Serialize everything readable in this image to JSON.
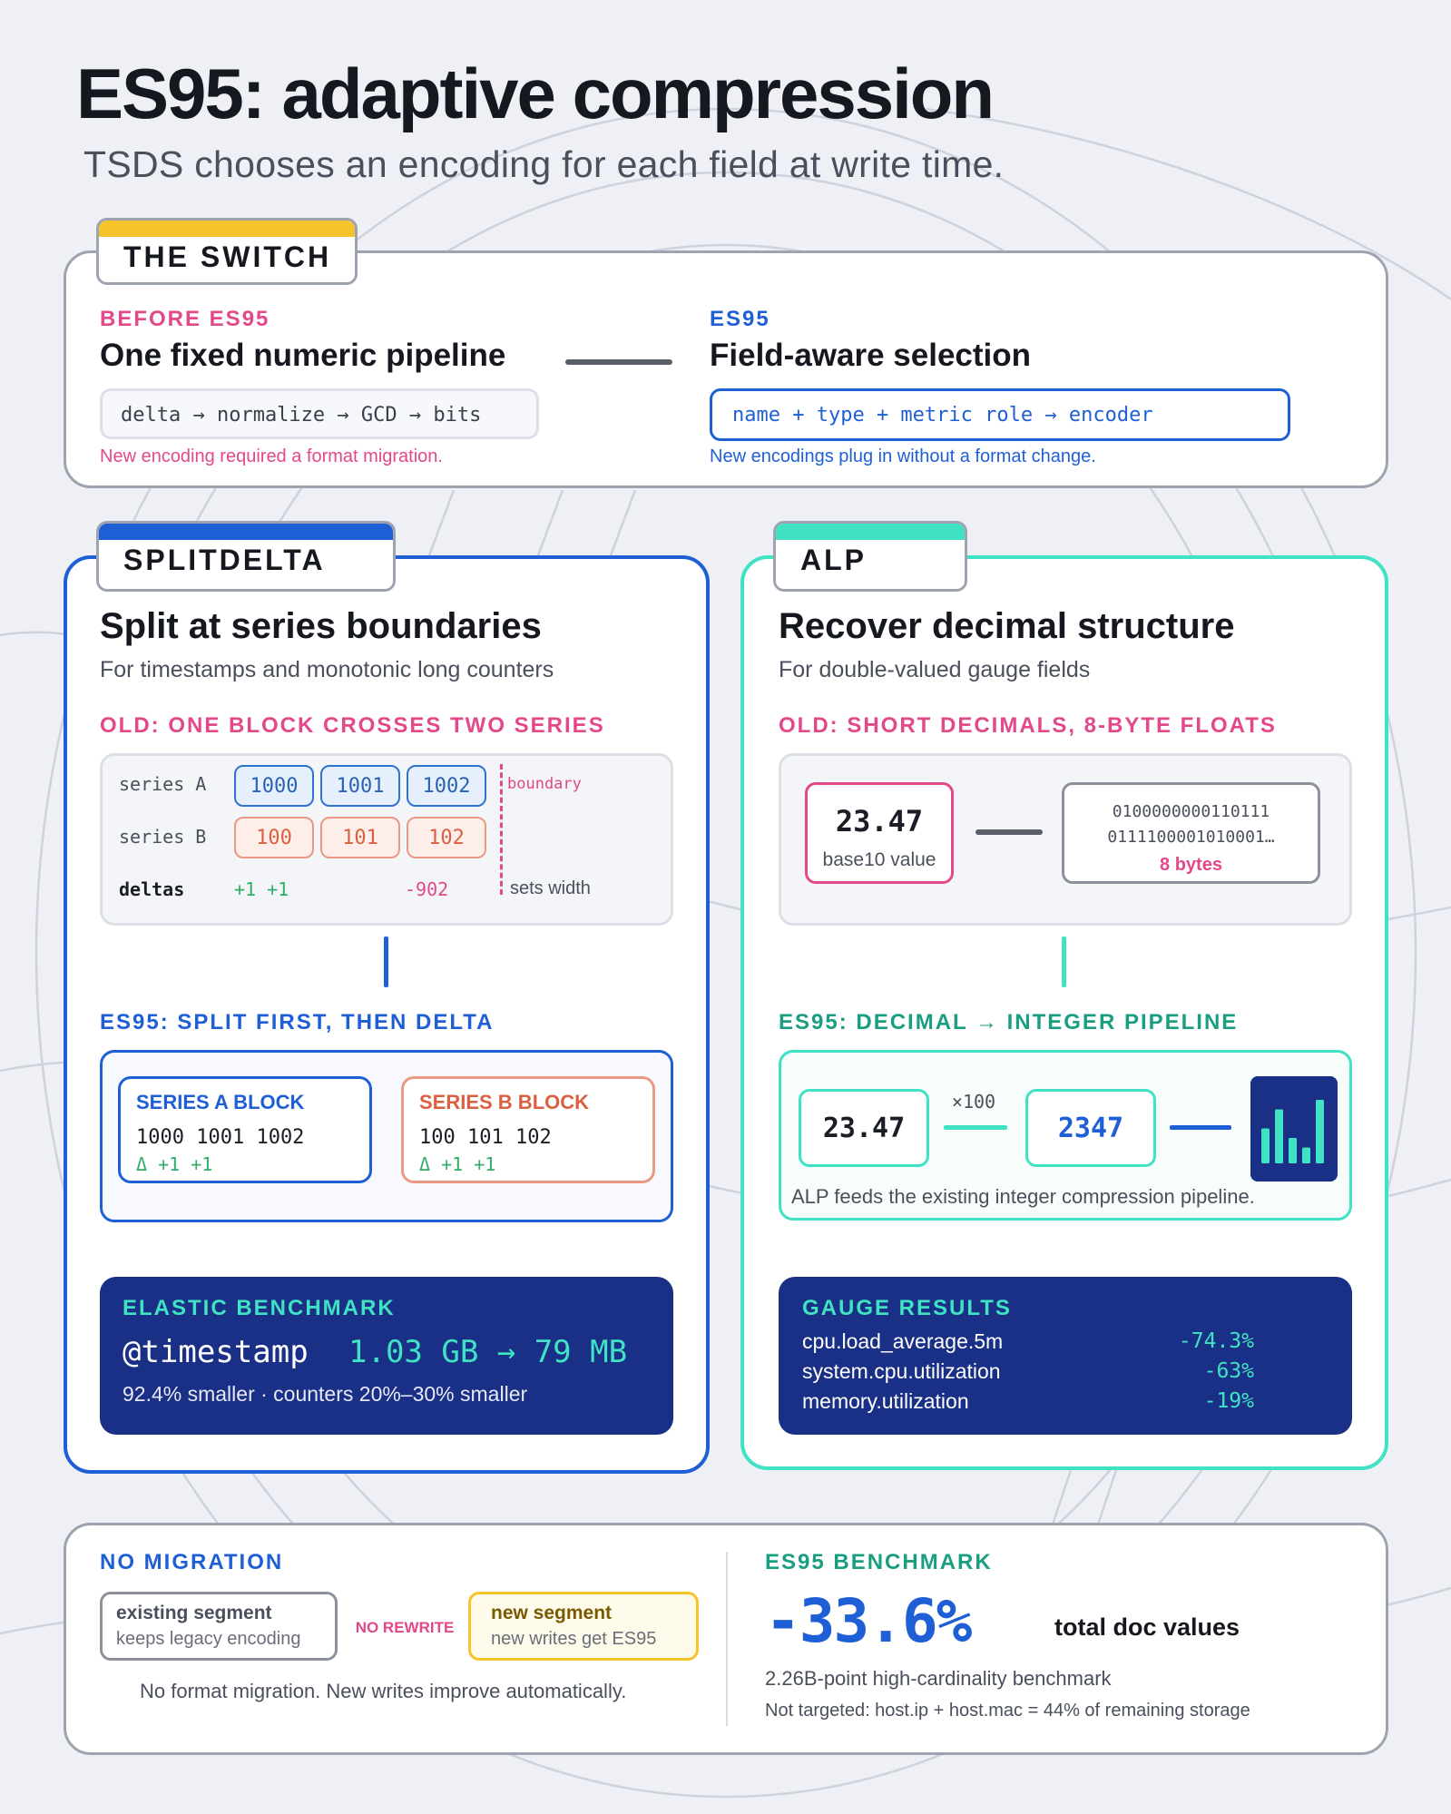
{
  "header": {
    "title": "ES95: adaptive compression",
    "subtitle": "TSDS chooses an encoding for each field at write time."
  },
  "colors": {
    "blue": "#1f5fd6",
    "teal": "#3fe3c3",
    "yellow": "#f6c42a",
    "pink": "#e2488a",
    "navy": "#1a2f86",
    "green": "#2fae6a"
  },
  "switch": {
    "tab": "THE SWITCH",
    "before_label": "BEFORE ES95",
    "before_title": "One fixed numeric pipeline",
    "before_pipeline": "delta → normalize → GCD → bits",
    "before_note": "New encoding required a format migration.",
    "after_label": "ES95",
    "after_title": "Field-aware selection",
    "after_pipeline": "name + type + metric role → encoder",
    "after_note": "New encodings plug in without a format change."
  },
  "splitdelta": {
    "tab": "SPLITDELTA",
    "title": "Split at series boundaries",
    "description": "For timestamps and monotonic long counters",
    "old_label": "OLD: ONE BLOCK CROSSES TWO SERIES",
    "series_a_label": "series A",
    "series_a": [
      "1000",
      "1001",
      "1002"
    ],
    "series_b_label": "series B",
    "series_b": [
      "100",
      "101",
      "102"
    ],
    "boundary_label": "boundary",
    "deltas_label": "deltas",
    "deltas": "+1 +1",
    "delta_jump": "-902",
    "sets_width": "sets width",
    "new_label": "ES95: SPLIT FIRST, THEN DELTA",
    "block_a_title": "SERIES A BLOCK",
    "block_a_values": "1000 1001 1002",
    "block_a_deltas": "Δ +1 +1",
    "block_b_title": "SERIES B BLOCK",
    "block_b_values": "100 101 102",
    "block_b_deltas": "Δ +1 +1",
    "bench_label": "ELASTIC BENCHMARK",
    "bench_field": "@timestamp",
    "bench_value": "1.03 GB → 79 MB",
    "bench_note": "92.4% smaller · counters 20%–30% smaller"
  },
  "alp": {
    "tab": "ALP",
    "title": "Recover decimal structure",
    "description": "For double-valued gauge fields",
    "old_label": "OLD: SHORT DECIMALS, 8-BYTE FLOATS",
    "decimal": "23.47",
    "decimal_caption": "base10 value",
    "bits_line1": "0100000000110111",
    "bits_line2": "0111100001010001…",
    "bits_caption": "8 bytes",
    "new_label": "ES95: DECIMAL → INTEGER PIPELINE",
    "input": "23.47",
    "multiplier": "×100",
    "output": "2347",
    "bar_chart_icon_levels": [
      0.55,
      0.85,
      0.4,
      0.25,
      1.0
    ],
    "pipeline_note": "ALP feeds the existing integer compression pipeline.",
    "results_label": "GAUGE RESULTS",
    "results": [
      {
        "metric": "cpu.load_average.5m",
        "change": "-74.3%"
      },
      {
        "metric": "system.cpu.utilization",
        "change": "-63%"
      },
      {
        "metric": "memory.utilization",
        "change": "-19%"
      }
    ]
  },
  "footer": {
    "migration_label": "NO MIGRATION",
    "existing_title": "existing segment",
    "existing_desc": "keeps legacy encoding",
    "no_rewrite": "NO REWRITE",
    "new_title": "new segment",
    "new_desc": "new writes get ES95",
    "migration_note": "No format migration. New writes improve automatically.",
    "bench_label": "ES95 BENCHMARK",
    "bench_value": "-33.6%",
    "bench_caption": "total doc values",
    "bench_note1": "2.26B-point high-cardinality benchmark",
    "bench_note2": "Not targeted: host.ip + host.mac = 44% of remaining storage"
  }
}
